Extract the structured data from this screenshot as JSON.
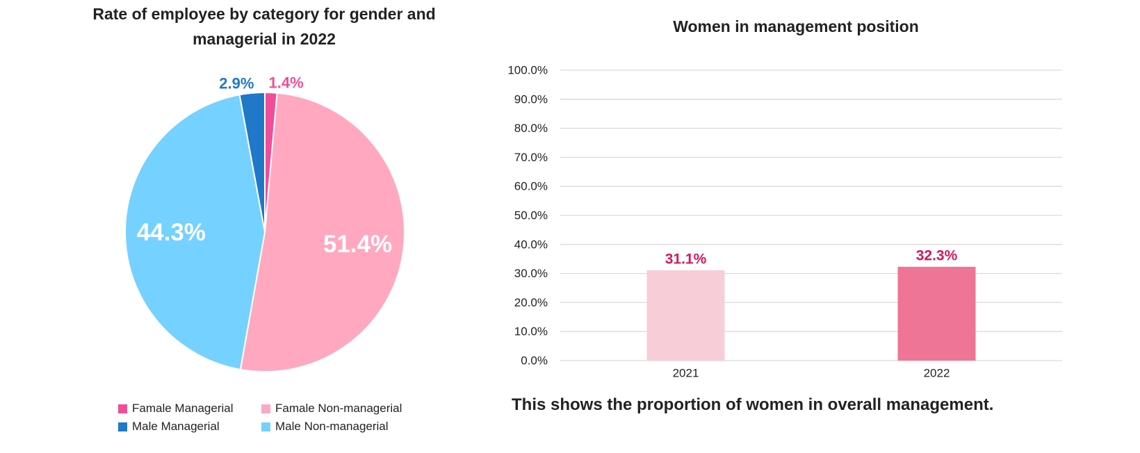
{
  "chart_data": [
    {
      "type": "pie",
      "title": "Rate of employee by category for gender and managerial in 2022",
      "slices": [
        {
          "label": "Famale Managerial",
          "value": 1.4,
          "display": "1.4%",
          "color": "#f04e98"
        },
        {
          "label": "Famale Non-managerial",
          "value": 51.4,
          "display": "51.4%",
          "color": "#ffa8c0"
        },
        {
          "label": "Male Non-managerial",
          "value": 44.3,
          "display": "44.3%",
          "color": "#75d1ff"
        },
        {
          "label": "Male Managerial",
          "value": 2.9,
          "display": "2.9%",
          "color": "#1f78c8"
        }
      ],
      "legend": {
        "placement": "bottom",
        "items": [
          {
            "label": "Famale Managerial",
            "color": "#f04e98"
          },
          {
            "label": "Famale Non-managerial",
            "color": "#ffa8c0"
          },
          {
            "label": "Male Managerial",
            "color": "#1f78c8"
          },
          {
            "label": "Male Non-managerial",
            "color": "#75d1ff"
          }
        ]
      }
    },
    {
      "type": "bar",
      "title": "Women in management position",
      "categories": [
        "2021",
        "2022"
      ],
      "values": [
        31.1,
        32.3
      ],
      "value_labels": [
        "31.1%",
        "32.3%"
      ],
      "bar_colors": [
        "#f7ced8",
        "#ee7595"
      ],
      "label_color": "#d6165f",
      "ylim": [
        0,
        100
      ],
      "yticks": [
        "0.0%",
        "10.0%",
        "20.0%",
        "30.0%",
        "40.0%",
        "50.0%",
        "60.0%",
        "70.0%",
        "80.0%",
        "90.0%",
        "100.0%"
      ],
      "grid": true,
      "note": "This shows the proportion of women in overall management."
    }
  ]
}
